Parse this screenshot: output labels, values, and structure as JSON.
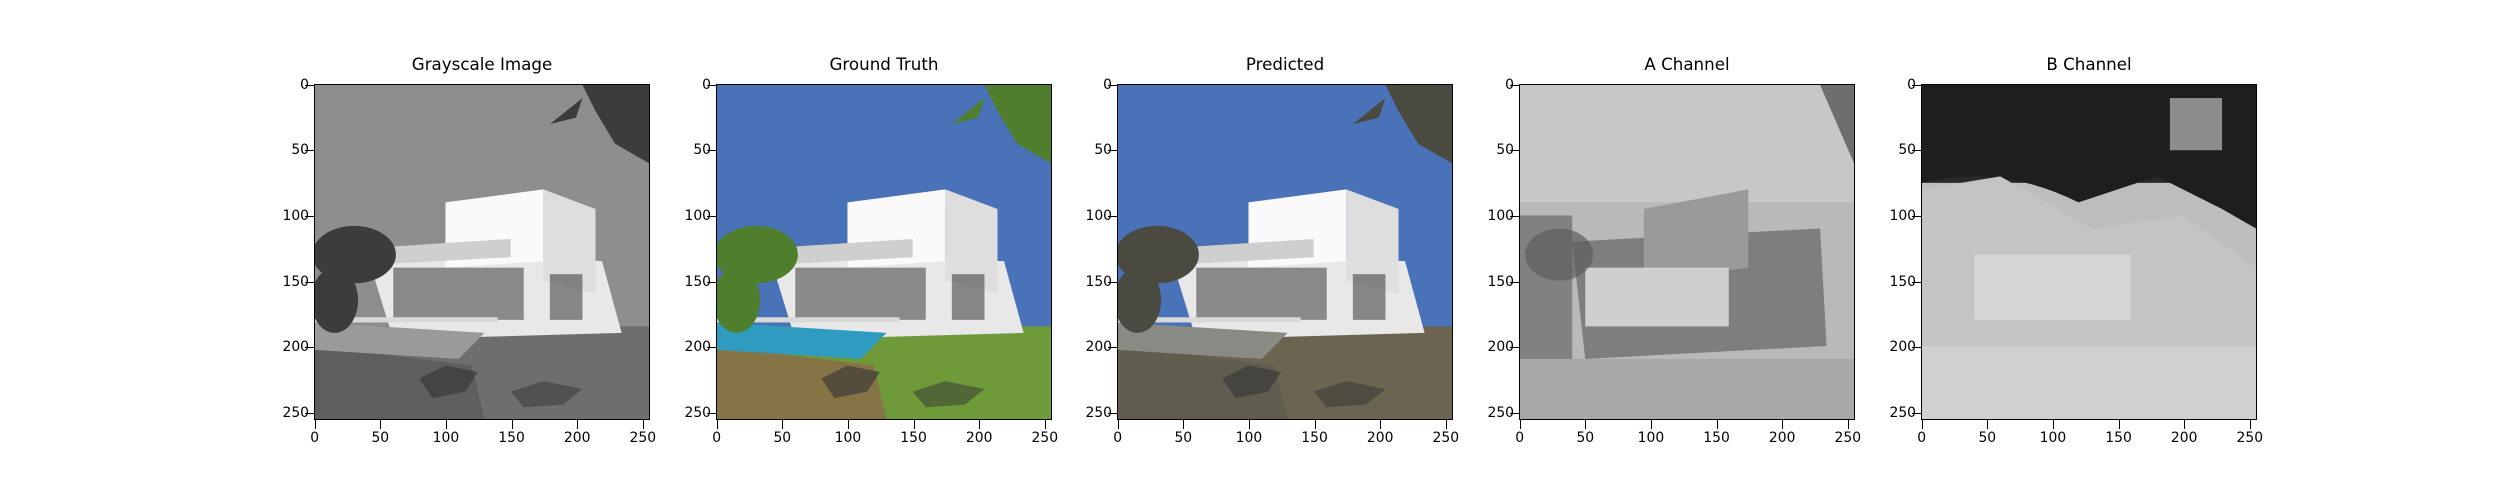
{
  "panels": [
    {
      "title": "Grayscale Image",
      "kind": "gray"
    },
    {
      "title": "Ground Truth",
      "kind": "color"
    },
    {
      "title": "Predicted",
      "kind": "pred"
    },
    {
      "title": "A Channel",
      "kind": "a"
    },
    {
      "title": "B Channel",
      "kind": "b"
    }
  ],
  "axes": {
    "yticks": [
      "0",
      "50",
      "100",
      "150",
      "200",
      "250"
    ],
    "xticks": [
      "0",
      "50",
      "100",
      "150",
      "200",
      "250"
    ],
    "yvalues": [
      0,
      50,
      100,
      150,
      200,
      250
    ],
    "xvalues": [
      0,
      50,
      100,
      150,
      200,
      250
    ],
    "extent": 256
  },
  "colors": {
    "sky": "#4a72b8",
    "grass": "#6f9a3a",
    "pool": "#2f9bc0",
    "house": "#f5f5f5",
    "palm": "#4f7f2c"
  }
}
